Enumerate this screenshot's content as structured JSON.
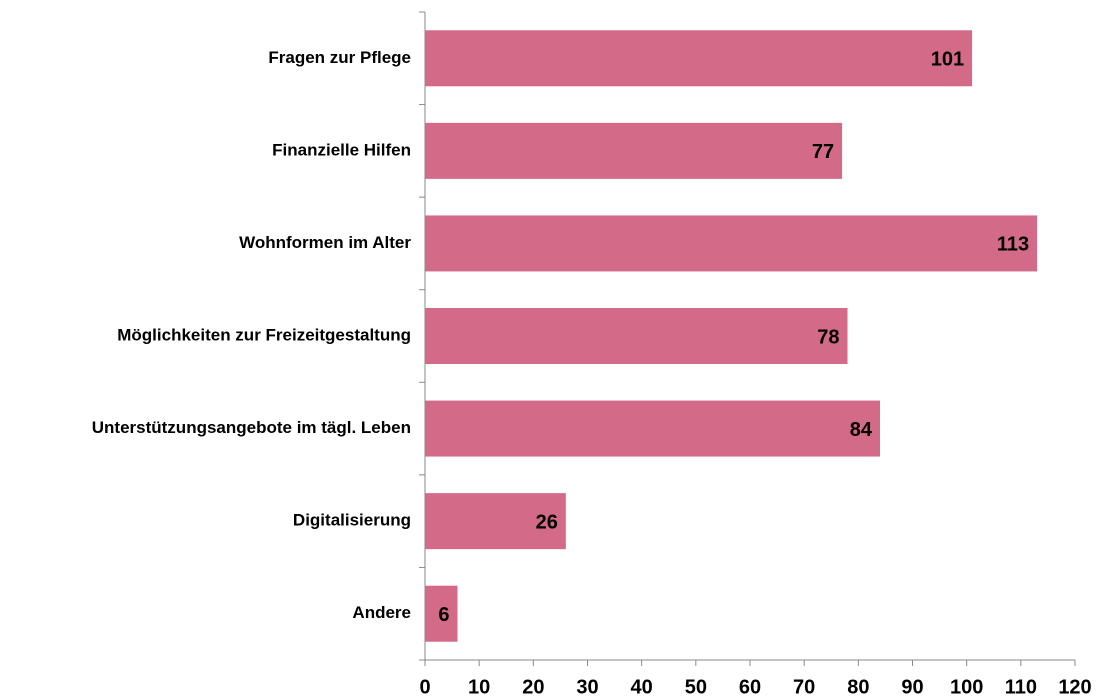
{
  "chart_data": {
    "type": "bar",
    "orientation": "horizontal",
    "categories": [
      "Fragen zur Pflege",
      "Finanzielle Hilfen",
      "Wohnformen im Alter",
      "Möglichkeiten zur Freizeitgestaltung",
      "Unterstützungsangebote im tägl. Leben",
      "Digitalisierung",
      "Andere"
    ],
    "values": [
      101,
      77,
      113,
      78,
      84,
      26,
      6
    ],
    "color": "#d26a88",
    "xlim": [
      0,
      120
    ],
    "xticks": [
      0,
      10,
      20,
      30,
      40,
      50,
      60,
      70,
      80,
      90,
      100,
      110,
      120
    ],
    "grid": false
  }
}
